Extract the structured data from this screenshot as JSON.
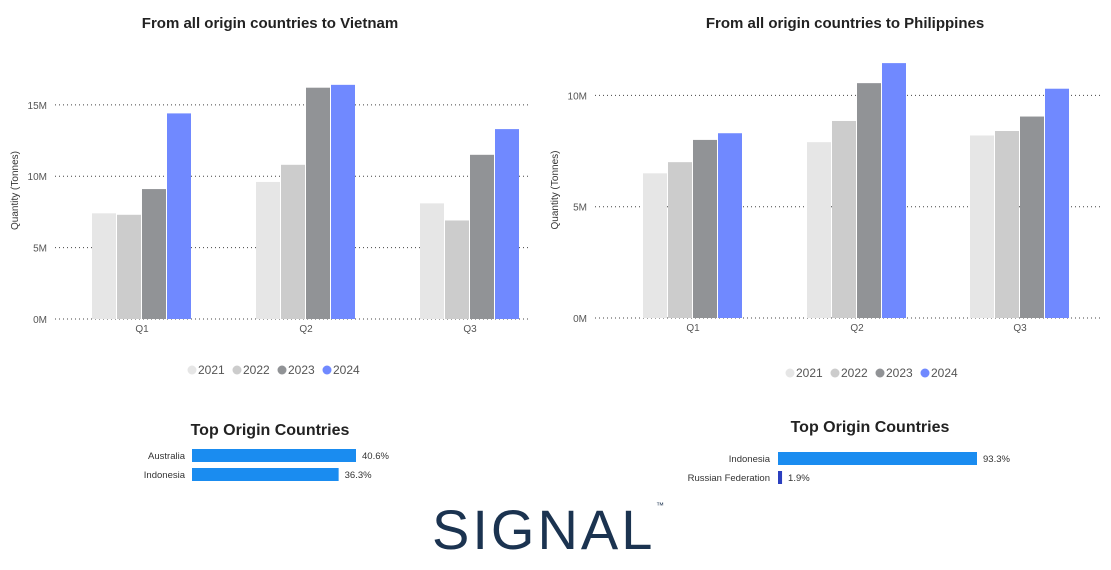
{
  "chart_data": [
    {
      "type": "bar",
      "title": "From all origin countries to Vietnam",
      "ylabel": "Quantity (Tonnes)",
      "categories": [
        "Q1",
        "Q2",
        "Q3"
      ],
      "yticks": [
        "0M",
        "5M",
        "10M",
        "15M"
      ],
      "ylim": [
        0,
        18000000
      ],
      "grid": "horizontal dotted",
      "legend_position": "bottom",
      "series": [
        {
          "name": "2021",
          "color": "#e6e6e6",
          "values": [
            7400000,
            9600000,
            8100000
          ]
        },
        {
          "name": "2022",
          "color": "#cccccc",
          "values": [
            7300000,
            10800000,
            6900000
          ]
        },
        {
          "name": "2023",
          "color": "#919396",
          "values": [
            9100000,
            16200000,
            11500000
          ]
        },
        {
          "name": "2024",
          "color": "#7089ff",
          "values": [
            14400000,
            16400000,
            13300000
          ]
        }
      ]
    },
    {
      "type": "bar",
      "title": "From all origin countries to Philippines",
      "ylabel": "Quantity (Tonnes)",
      "categories": [
        "Q1",
        "Q2",
        "Q3"
      ],
      "yticks": [
        "0M",
        "5M",
        "10M"
      ],
      "ylim": [
        0,
        11500000
      ],
      "grid": "horizontal dotted",
      "legend_position": "bottom",
      "series": [
        {
          "name": "2021",
          "color": "#e6e6e6",
          "values": [
            6500000,
            7900000,
            8200000
          ]
        },
        {
          "name": "2022",
          "color": "#cccccc",
          "values": [
            7000000,
            8850000,
            8400000
          ]
        },
        {
          "name": "2023",
          "color": "#919396",
          "values": [
            8000000,
            10550000,
            9050000
          ]
        },
        {
          "name": "2024",
          "color": "#7089ff",
          "values": [
            8300000,
            11450000,
            10300000
          ]
        }
      ]
    },
    {
      "type": "bar",
      "title": "Top Origin Countries",
      "orientation": "horizontal",
      "categories": [
        "Australia",
        "Indonesia"
      ],
      "values": [
        40.6,
        36.3
      ],
      "value_labels": [
        "40.6%",
        "36.3%"
      ],
      "colors": [
        "#1a8cf0",
        "#1a8cf0"
      ]
    },
    {
      "type": "bar",
      "title": "Top Origin Countries",
      "orientation": "horizontal",
      "categories": [
        "Indonesia",
        "Russian Federation"
      ],
      "values": [
        93.3,
        1.9
      ],
      "value_labels": [
        "93.3%",
        "1.9%"
      ],
      "colors": [
        "#1a8cf0",
        "#2b3fbf"
      ]
    }
  ],
  "logo": {
    "text": "SIGNAL",
    "mark": "™",
    "color": "#1b3350"
  }
}
